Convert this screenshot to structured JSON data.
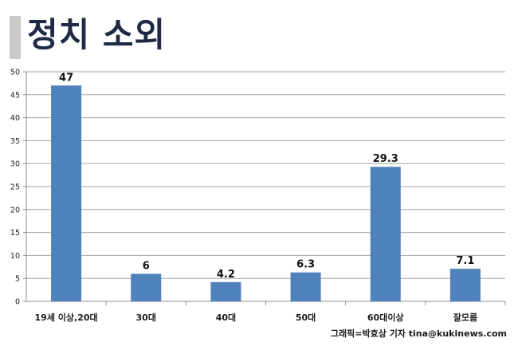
{
  "title": "정치 소외",
  "credit": "그래픽=박효상 기자 tina@kukinews.com",
  "colors": {
    "bar": "#4f81bd",
    "axis": "#8c8c8c",
    "grid": "#a6a6a6",
    "title": "#1f2a44"
  },
  "chart_data": {
    "type": "bar",
    "categories": [
      "19세 이상,20대",
      "30대",
      "40대",
      "50대",
      "60대이상",
      "잘모름"
    ],
    "values": [
      47,
      6,
      4.2,
      6.3,
      29.3,
      7.1
    ],
    "data_labels": [
      "47",
      "6",
      "4.2",
      "6.3",
      "29.3",
      "7.1"
    ],
    "ylim": [
      0,
      50
    ],
    "yticks": [
      0,
      5,
      10,
      15,
      20,
      25,
      30,
      35,
      40,
      45,
      50
    ],
    "grid": true,
    "legend": "none"
  }
}
